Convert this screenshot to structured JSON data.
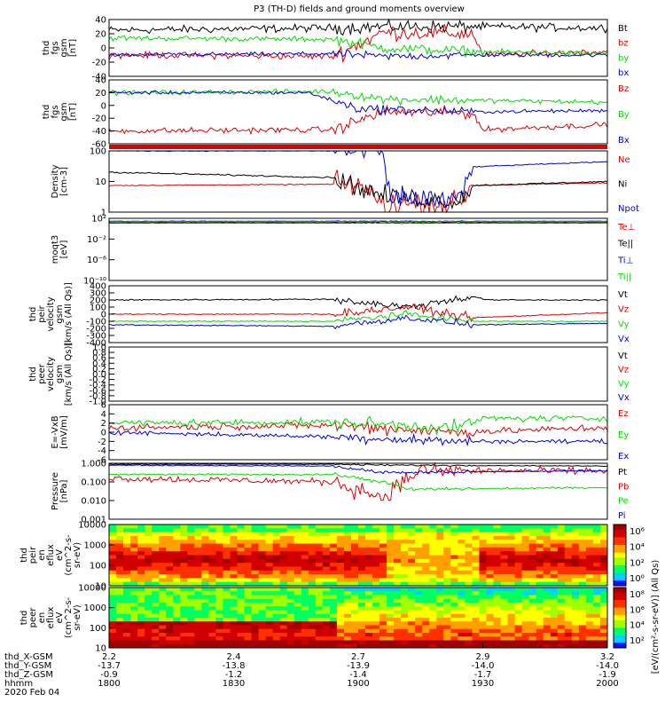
{
  "title": "P3 (TH-D) fields and ground moments overview",
  "colors": {
    "black": "#000000",
    "red": "#e00000",
    "green": "#00dd00",
    "blue": "#0000dd"
  },
  "chart_data": [
    {
      "type": "line",
      "ylabel": [
        "thd",
        "fgs",
        "gsm",
        "[nT]"
      ],
      "ylim": [
        -40,
        40
      ],
      "yticks": [
        "40",
        "20",
        "0",
        "-20",
        "-40"
      ],
      "series": [
        {
          "name": "Bt",
          "color": "black"
        },
        {
          "name": "bz",
          "color": "red"
        },
        {
          "name": "by",
          "color": "green"
        },
        {
          "name": "bx",
          "color": "blue"
        }
      ]
    },
    {
      "type": "line",
      "ylabel": [
        "thd",
        "fgs",
        "gsm",
        "[nT]"
      ],
      "ylim": [
        -60,
        40
      ],
      "yticks": [
        "40",
        "20",
        "0",
        "-20",
        "-40",
        "-60"
      ],
      "series": [
        {
          "name": "Bz",
          "color": "red"
        },
        {
          "name": "By",
          "color": "green"
        },
        {
          "name": "Bx",
          "color": "blue"
        }
      ]
    },
    {
      "type": "line",
      "ylabel": [
        "Density",
        "[cm-3]"
      ],
      "yscale": "log",
      "ylim": [
        1,
        200
      ],
      "yticks": [
        "100",
        "10",
        "1"
      ],
      "series": [
        {
          "name": "Ne",
          "color": "red"
        },
        {
          "name": "Ni",
          "color": "black"
        },
        {
          "name": "Npot",
          "color": "blue"
        }
      ]
    },
    {
      "type": "line",
      "ylabel": [
        "moqt3",
        "[eV]"
      ],
      "yscale": "log",
      "ylim": [
        1e-10,
        1000
      ],
      "yticks": [
        "10²",
        "10⁻²",
        "10⁻⁶",
        "10⁻¹⁰"
      ],
      "series": [
        {
          "name": "Te⊥",
          "color": "red"
        },
        {
          "name": "Te||",
          "color": "black"
        },
        {
          "name": "Ti⊥",
          "color": "blue"
        },
        {
          "name": "Ti||",
          "color": "green"
        }
      ]
    },
    {
      "type": "line",
      "ylabel": [
        "thd",
        "peir",
        "velocity",
        "gsm",
        "[km/s (All Qs)]"
      ],
      "ylim": [
        -400,
        400
      ],
      "yticks": [
        "400",
        "300",
        "200",
        "100",
        "0",
        "-100",
        "-200",
        "-300",
        "-400"
      ],
      "series": [
        {
          "name": "Vt",
          "color": "black"
        },
        {
          "name": "Vz",
          "color": "red"
        },
        {
          "name": "Vy",
          "color": "green"
        },
        {
          "name": "Vx",
          "color": "blue"
        }
      ]
    },
    {
      "type": "line",
      "ylabel": [
        "thd",
        "peer",
        "velocity",
        "gsm",
        "[km/s (All Qs)]"
      ],
      "ylim": [
        -1,
        1
      ],
      "yticks": [
        "1.0",
        "0.8",
        "0.6",
        "0.4",
        "0.2",
        "0.0",
        "-0.2",
        "-0.4",
        "-0.6",
        "-0.8",
        "-1.0"
      ],
      "series": [
        {
          "name": "Vt",
          "color": "black"
        },
        {
          "name": "Vz",
          "color": "red"
        },
        {
          "name": "Vy",
          "color": "green"
        },
        {
          "name": "Vx",
          "color": "blue"
        }
      ]
    },
    {
      "type": "line",
      "ylabel": [
        "E=-VxB",
        "[mV/m]"
      ],
      "ylim": [
        -6,
        6
      ],
      "yticks": [
        "6",
        "4",
        "2",
        "0",
        "-2",
        "-4",
        "-6"
      ],
      "series": [
        {
          "name": "Ez",
          "color": "red"
        },
        {
          "name": "Ey",
          "color": "green"
        },
        {
          "name": "Ex",
          "color": "blue"
        }
      ]
    },
    {
      "type": "line",
      "ylabel": [
        "Pressure",
        "[nPa]"
      ],
      "yscale": "log",
      "ylim": [
        0.001,
        1
      ],
      "yticks": [
        "1.000",
        "0.100",
        "0.010",
        "0.001"
      ],
      "series": [
        {
          "name": "Pt",
          "color": "black"
        },
        {
          "name": "Pb",
          "color": "red"
        },
        {
          "name": "Pe",
          "color": "green"
        },
        {
          "name": "Pi",
          "color": "blue"
        }
      ]
    },
    {
      "type": "heatmap",
      "ylabel": [
        "thd",
        "peir",
        "en",
        "eflux",
        "eV",
        "(cm^2-s-",
        "sr-eV)"
      ],
      "yscale": "log",
      "yticks": [
        "10000",
        "1000",
        "100",
        "10"
      ],
      "colorbar": [
        "10⁶",
        "10⁴",
        "10²",
        "10⁰"
      ]
    },
    {
      "type": "heatmap",
      "ylabel": [
        "thd",
        "peer",
        "en",
        "eflux",
        "eV",
        "(cm^2-s-",
        "sr-eV)"
      ],
      "yscale": "log",
      "yticks": [
        "10000",
        "1000",
        "100",
        "10"
      ],
      "colorbar": [
        "10⁸",
        "10⁶",
        "10⁴",
        "10²"
      ]
    }
  ],
  "colorbar_label": "[eV/(cm²-s-sr-eV)] (All Qs)",
  "x_axis": {
    "rows": [
      {
        "label": "thd_X-GSM",
        "values": [
          "2.2",
          "2.4",
          "2.7",
          "2.9",
          "3.2"
        ]
      },
      {
        "label": "thd_Y-GSM",
        "values": [
          "-13.7",
          "-13.8",
          "-13.9",
          "-14.0",
          "-14.0"
        ]
      },
      {
        "label": "thd_Z-GSM",
        "values": [
          "-0.9",
          "-1.2",
          "-1.4",
          "-1.7",
          "-1.9"
        ]
      },
      {
        "label": "hhmm",
        "values": [
          "1800",
          "1830",
          "1900",
          "1930",
          "2000"
        ]
      }
    ],
    "date": "2020 Feb 04"
  }
}
